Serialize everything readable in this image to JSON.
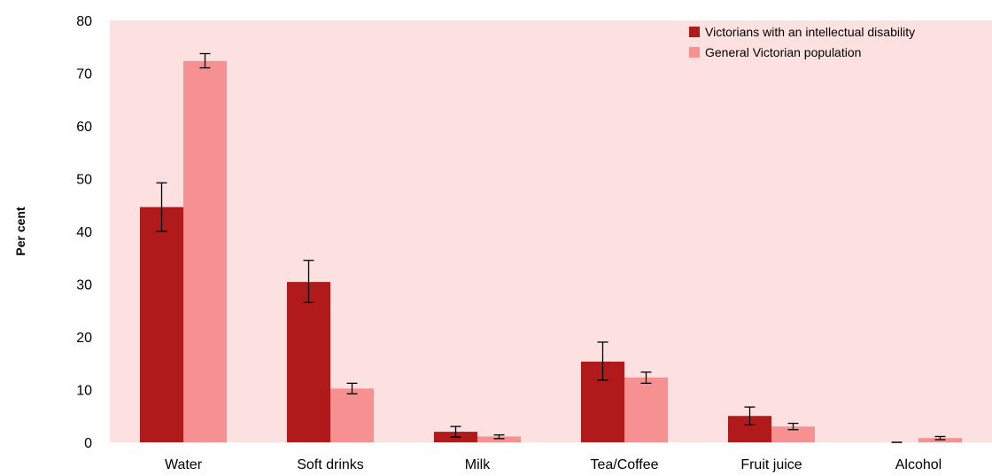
{
  "chart_data": {
    "type": "bar",
    "categories": [
      "Water",
      "Soft drinks",
      "Milk",
      "Tea/Coffee",
      "Fruit juice",
      "Alcohol"
    ],
    "series": [
      {
        "name": "Victorians with an intellectual disability",
        "color": "#b01a1a",
        "values": [
          44.6,
          30.4,
          2.0,
          15.3,
          5.0,
          0.0
        ],
        "error_low": [
          40.0,
          26.5,
          1.0,
          11.8,
          3.3,
          0.0
        ],
        "error_high": [
          49.2,
          34.5,
          3.0,
          19.0,
          6.7,
          0.0
        ]
      },
      {
        "name": "General Victorian population",
        "color": "#f79191",
        "values": [
          72.3,
          10.2,
          1.1,
          12.3,
          3.0,
          0.8
        ],
        "error_low": [
          71.0,
          9.2,
          0.7,
          11.2,
          2.4,
          0.5
        ],
        "error_high": [
          73.7,
          11.2,
          1.4,
          13.3,
          3.6,
          1.1
        ]
      }
    ],
    "ylabel": "Per cent",
    "xlabel": "",
    "ylim": [
      0,
      80
    ],
    "yticks": [
      0,
      10,
      20,
      30,
      40,
      50,
      60,
      70,
      80
    ],
    "plot_background": "#fde0e0",
    "grid": false,
    "legend_position": "top-right"
  }
}
